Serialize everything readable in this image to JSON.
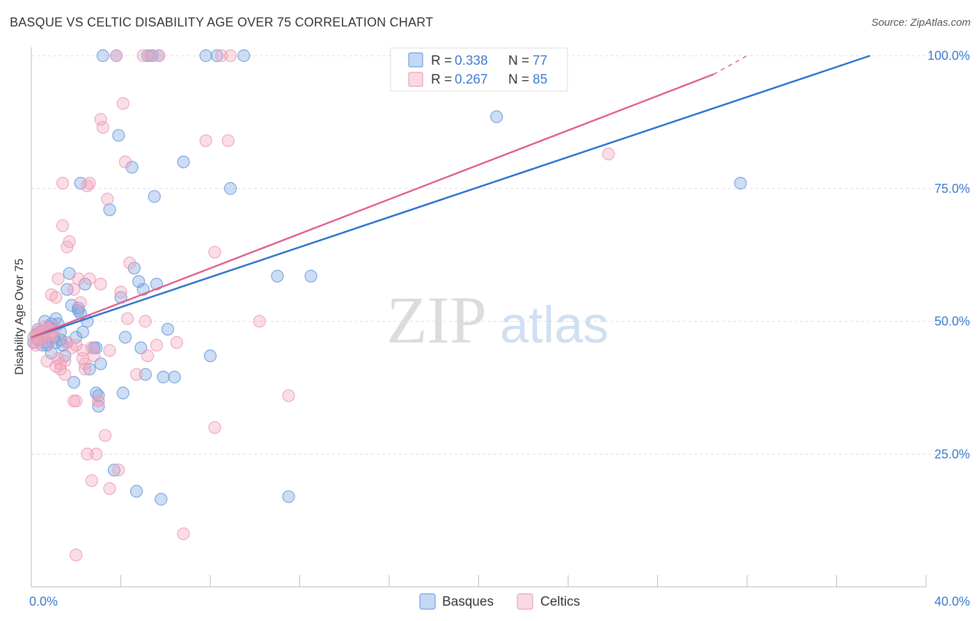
{
  "header": {
    "title": "BASQUE VS CELTIC DISABILITY AGE OVER 75 CORRELATION CHART",
    "source": "Source: ZipAtlas.com"
  },
  "watermark": {
    "part1": "ZIP",
    "part2": "atlas"
  },
  "chart_data": {
    "type": "scatter",
    "ylabel": "Disability Age Over 75",
    "xlim": [
      0,
      40
    ],
    "ylim": [
      0,
      100
    ],
    "x_tick_labels": [
      "0.0%",
      "40.0%"
    ],
    "y_ticks": [
      25,
      50,
      75,
      100
    ],
    "y_tick_labels": [
      "25.0%",
      "50.0%",
      "75.0%",
      "100.0%"
    ],
    "grid": true,
    "legend_stats": [
      {
        "r_label": "R = ",
        "r_value": "0.338",
        "n_label": "N = ",
        "n_value": "77",
        "color": "#6f9fe0"
      },
      {
        "r_label": "R = ",
        "r_value": "0.267",
        "n_label": "N = ",
        "n_value": "85",
        "color": "#f0a0b8"
      }
    ],
    "series": [
      {
        "name": "Basques",
        "color": "#6f9fe0",
        "line_color": "#2a6fcc",
        "trend": {
          "x0": 0,
          "y0": 47.0,
          "x1": 37.5,
          "y1": 100
        },
        "points": [
          [
            0.2,
            47.5
          ],
          [
            0.3,
            46.5
          ],
          [
            0.4,
            48.0
          ],
          [
            0.5,
            45.5
          ],
          [
            0.6,
            50.0
          ],
          [
            0.7,
            46.0
          ],
          [
            0.8,
            49.0
          ],
          [
            0.9,
            44.0
          ],
          [
            1.0,
            47.0
          ],
          [
            1.1,
            50.5
          ],
          [
            1.2,
            49.5
          ],
          [
            1.3,
            46.5
          ],
          [
            1.4,
            45.5
          ],
          [
            1.5,
            43.5
          ],
          [
            1.6,
            56.0
          ],
          [
            1.7,
            59.0
          ],
          [
            1.8,
            53.0
          ],
          [
            1.9,
            38.5
          ],
          [
            2.0,
            47.0
          ],
          [
            2.1,
            52.0
          ],
          [
            2.2,
            76.0
          ],
          [
            2.3,
            48.0
          ],
          [
            2.4,
            57.0
          ],
          [
            2.5,
            50.0
          ],
          [
            2.6,
            41.0
          ],
          [
            2.8,
            45.0
          ],
          [
            2.9,
            36.5
          ],
          [
            3.0,
            34.0
          ],
          [
            3.1,
            42.0
          ],
          [
            3.2,
            100
          ],
          [
            3.5,
            71.0
          ],
          [
            3.7,
            22.0
          ],
          [
            3.9,
            85.0
          ],
          [
            4.0,
            54.5
          ],
          [
            4.1,
            36.5
          ],
          [
            4.2,
            47.0
          ],
          [
            4.5,
            79.0
          ],
          [
            4.6,
            60.0
          ],
          [
            4.7,
            18.0
          ],
          [
            4.8,
            57.5
          ],
          [
            4.9,
            45.0
          ],
          [
            5.0,
            56.0
          ],
          [
            5.1,
            40.0
          ],
          [
            5.2,
            100
          ],
          [
            5.4,
            100
          ],
          [
            5.5,
            73.5
          ],
          [
            5.6,
            57.0
          ],
          [
            5.7,
            100
          ],
          [
            5.8,
            16.5
          ],
          [
            5.9,
            39.5
          ],
          [
            6.1,
            48.5
          ],
          [
            6.4,
            39.5
          ],
          [
            6.8,
            80.0
          ],
          [
            7.8,
            100
          ],
          [
            8.0,
            43.5
          ],
          [
            8.3,
            100
          ],
          [
            8.9,
            75.0
          ],
          [
            9.5,
            100
          ],
          [
            11.0,
            58.5
          ],
          [
            11.5,
            17.0
          ],
          [
            12.5,
            58.5
          ],
          [
            20.8,
            88.5
          ],
          [
            31.7,
            76.0
          ],
          [
            0.1,
            46.0
          ],
          [
            0.3,
            48.5
          ],
          [
            0.5,
            47.0
          ],
          [
            0.7,
            45.5
          ],
          [
            0.9,
            49.5
          ],
          [
            1.1,
            46.0
          ],
          [
            1.3,
            48.0
          ],
          [
            2.1,
            52.5
          ],
          [
            2.9,
            45.0
          ],
          [
            3.0,
            36.0
          ],
          [
            1.6,
            46.0
          ],
          [
            2.2,
            51.5
          ],
          [
            3.8,
            100
          ],
          [
            0.4,
            46.5
          ]
        ]
      },
      {
        "name": "Celtics",
        "color": "#f0a0b8",
        "line_color": "#e0608a",
        "trend": {
          "x0": 0,
          "y0": 47.0,
          "x1": 30.5,
          "y1": 96.5,
          "dash_x1": 32.0,
          "dash_y1": 100
        },
        "points": [
          [
            0.1,
            47.0
          ],
          [
            0.2,
            45.5
          ],
          [
            0.3,
            48.5
          ],
          [
            0.4,
            46.5
          ],
          [
            0.5,
            47.5
          ],
          [
            0.6,
            49.0
          ],
          [
            0.7,
            42.5
          ],
          [
            0.8,
            46.0
          ],
          [
            0.9,
            55.0
          ],
          [
            1.0,
            48.0
          ],
          [
            1.1,
            54.5
          ],
          [
            1.2,
            58.0
          ],
          [
            1.3,
            42.0
          ],
          [
            1.4,
            76.0
          ],
          [
            1.4,
            68.0
          ],
          [
            1.5,
            40.0
          ],
          [
            1.6,
            64.0
          ],
          [
            1.7,
            65.0
          ],
          [
            1.8,
            45.0
          ],
          [
            1.9,
            56.0
          ],
          [
            2.0,
            6.0
          ],
          [
            2.0,
            35.0
          ],
          [
            2.1,
            58.0
          ],
          [
            2.2,
            53.5
          ],
          [
            2.3,
            43.0
          ],
          [
            2.4,
            41.0
          ],
          [
            2.5,
            25.0
          ],
          [
            2.5,
            75.5
          ],
          [
            2.6,
            58.0
          ],
          [
            2.6,
            76.0
          ],
          [
            2.7,
            20.0
          ],
          [
            2.8,
            43.5
          ],
          [
            2.9,
            25.0
          ],
          [
            3.0,
            35.0
          ],
          [
            3.1,
            57.0
          ],
          [
            3.1,
            88.0
          ],
          [
            3.2,
            86.5
          ],
          [
            3.3,
            28.5
          ],
          [
            3.4,
            73.0
          ],
          [
            3.5,
            18.5
          ],
          [
            3.8,
            100
          ],
          [
            3.9,
            22.0
          ],
          [
            4.0,
            55.5
          ],
          [
            4.1,
            91.0
          ],
          [
            4.2,
            80.0
          ],
          [
            4.3,
            50.5
          ],
          [
            4.4,
            61.0
          ],
          [
            4.7,
            40.0
          ],
          [
            5.0,
            100
          ],
          [
            5.1,
            50.0
          ],
          [
            5.2,
            43.5
          ],
          [
            5.3,
            100
          ],
          [
            5.6,
            45.5
          ],
          [
            5.7,
            100
          ],
          [
            6.5,
            46.0
          ],
          [
            6.8,
            10.0
          ],
          [
            7.8,
            84.0
          ],
          [
            8.2,
            30.0
          ],
          [
            8.2,
            63.0
          ],
          [
            8.5,
            100
          ],
          [
            8.8,
            84.0
          ],
          [
            8.9,
            100
          ],
          [
            10.2,
            50.0
          ],
          [
            11.5,
            36.0
          ],
          [
            25.8,
            81.5
          ],
          [
            0.2,
            46.0
          ],
          [
            0.4,
            47.0
          ],
          [
            0.6,
            48.0
          ],
          [
            0.8,
            47.5
          ],
          [
            1.0,
            49.0
          ],
          [
            1.2,
            43.0
          ],
          [
            1.6,
            46.0
          ],
          [
            1.9,
            35.0
          ],
          [
            2.3,
            44.5
          ],
          [
            2.7,
            45.0
          ],
          [
            3.0,
            35.0
          ],
          [
            3.5,
            44.5
          ],
          [
            1.1,
            41.5
          ],
          [
            0.9,
            47.5
          ],
          [
            0.3,
            47.5
          ],
          [
            1.5,
            42.5
          ],
          [
            2.4,
            42.0
          ],
          [
            0.7,
            48.5
          ],
          [
            1.3,
            41.0
          ],
          [
            2.0,
            45.5
          ]
        ]
      }
    ]
  }
}
